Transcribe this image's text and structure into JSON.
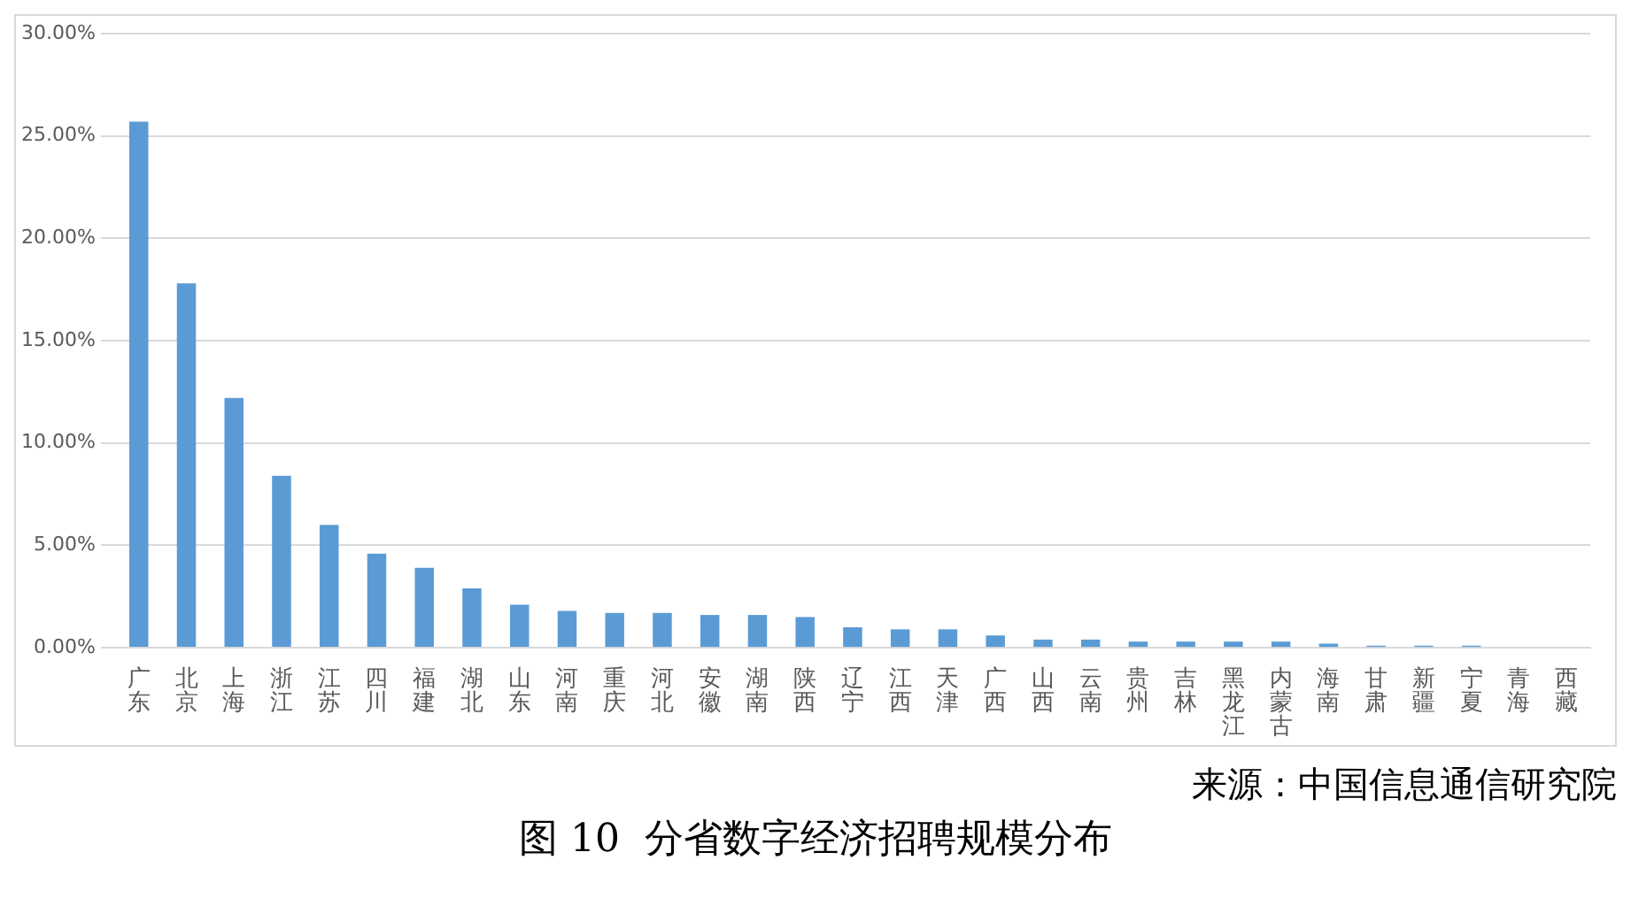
{
  "chart_data": {
    "type": "bar",
    "title": "图 10  分省数字经济招聘规模分布",
    "annotations": [
      "来源：中国信息通信研究院"
    ],
    "categories": [
      "广东",
      "北京",
      "上海",
      "浙江",
      "江苏",
      "四川",
      "福建",
      "湖北",
      "山东",
      "河南",
      "重庆",
      "河北",
      "安徽",
      "湖南",
      "陕西",
      "辽宁",
      "江西",
      "天津",
      "广西",
      "山西",
      "云南",
      "贵州",
      "吉林",
      "黑龙江",
      "内蒙古",
      "海南",
      "甘肃",
      "新疆",
      "宁夏",
      "青海",
      "西藏"
    ],
    "values": [
      25.7,
      17.8,
      12.2,
      8.4,
      6.0,
      4.6,
      3.9,
      2.9,
      2.1,
      1.8,
      1.7,
      1.7,
      1.6,
      1.6,
      1.5,
      1.0,
      0.9,
      0.9,
      0.6,
      0.4,
      0.4,
      0.3,
      0.3,
      0.3,
      0.3,
      0.2,
      0.1,
      0.1,
      0.1,
      0,
      0
    ],
    "color": "#5b9bd5",
    "ylim": [
      0,
      30
    ],
    "yticks": [
      {
        "value": 0,
        "label": "0.00%"
      },
      {
        "value": 5,
        "label": "5.00%"
      },
      {
        "value": 10,
        "label": "10.00%"
      },
      {
        "value": 15,
        "label": "15.00%"
      },
      {
        "value": 20,
        "label": "20.00%"
      },
      {
        "value": 25,
        "label": "25.00%"
      },
      {
        "value": 30,
        "label": "30.00%"
      }
    ],
    "grid": "y"
  }
}
